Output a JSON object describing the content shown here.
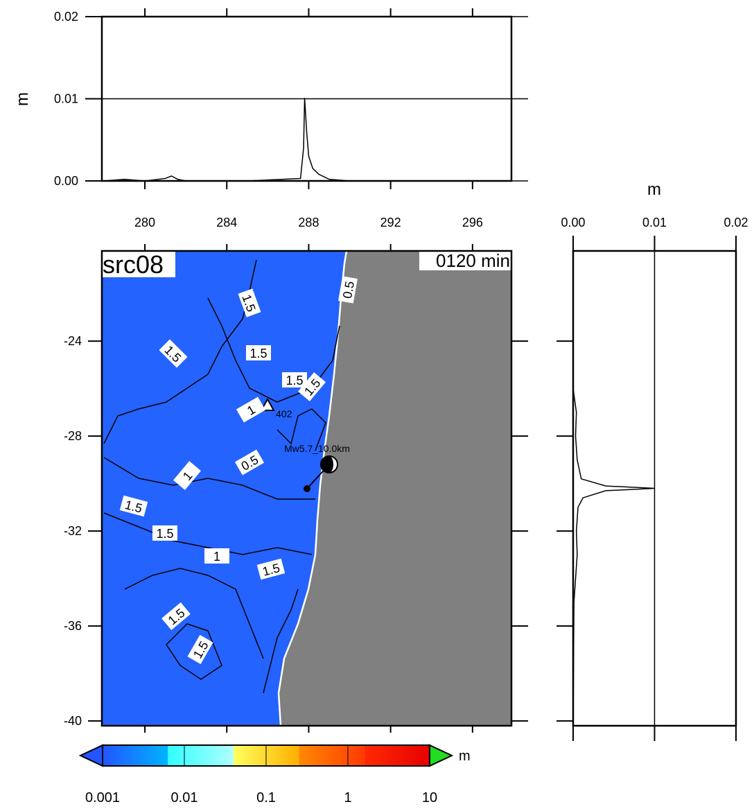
{
  "chart_data": [
    {
      "type": "line",
      "ylabel": "m",
      "xlim": [
        277.9,
        297.9
      ],
      "ylim": [
        0,
        0.02
      ],
      "xticks": [
        280,
        284,
        288,
        292,
        296
      ],
      "yticks": [
        {
          "value": 0,
          "label": "0.00"
        },
        {
          "value": 0.01,
          "label": "0.01"
        },
        {
          "value": 0.02,
          "label": "0.02"
        }
      ],
      "color": "#000000",
      "x": [
        278,
        279,
        279.5,
        280,
        281,
        281.3,
        281.6,
        282,
        285,
        287.6,
        287.75,
        287.8,
        287.9,
        288,
        288.2,
        288.5,
        289,
        290,
        297.9
      ],
      "values": [
        0,
        0.0002,
        0.0001,
        0,
        0.0003,
        0.0006,
        0.0002,
        0,
        0,
        0.0003,
        0.004,
        0.0101,
        0.006,
        0.003,
        0.0015,
        0.0008,
        0.0002,
        0,
        0
      ]
    },
    {
      "type": "map",
      "title": "src08",
      "time_label": "0120 min",
      "source_label": "Mw5.7_10.0km",
      "station_label": "402",
      "xlim": [
        277.9,
        297.9
      ],
      "ylim": [
        -40.2,
        -20.2
      ],
      "xticks": [
        280,
        284,
        288,
        292,
        296
      ],
      "yticks": [
        -24,
        -28,
        -32,
        -36,
        -40
      ],
      "sea_color": "#2563ff",
      "land_color": "#808080",
      "contour_labels": [
        "1.5",
        "0.5",
        "1.5",
        "1.5",
        "1.5",
        "1.5",
        "1",
        "0.5",
        "1",
        "1.5",
        "1.5",
        "1",
        "1.5",
        "1.5",
        "1.5"
      ]
    },
    {
      "type": "line",
      "orientation": "vertical",
      "xlabel": "m",
      "xlim": [
        0,
        0.02
      ],
      "ylim": [
        -40.2,
        -20.2
      ],
      "xticks": [
        {
          "value": 0,
          "label": "0.00"
        },
        {
          "value": 0.01,
          "label": "0.01"
        },
        {
          "value": 0.02,
          "label": "0.02"
        }
      ],
      "yticks": [
        -24,
        -28,
        -32,
        -36,
        -40
      ],
      "color": "#000000",
      "y": [
        -20.2,
        -26,
        -26.5,
        -27,
        -28,
        -29,
        -29.8,
        -30.1,
        -30.2,
        -30.3,
        -30.6,
        -31,
        -32,
        -33,
        -34,
        -35,
        -40.2
      ],
      "values": [
        0,
        0,
        0.0002,
        0.0004,
        0.0003,
        0.0005,
        0.001,
        0.004,
        0.01,
        0.004,
        0.0012,
        0.0006,
        0.0004,
        0.0005,
        0.0003,
        0.0001,
        0
      ]
    },
    {
      "type": "colorbar",
      "unit": "m",
      "log_scale": true,
      "lim": [
        0.001,
        10
      ],
      "ticks": [
        0.001,
        0.01,
        0.1,
        1,
        10
      ],
      "colors": [
        [
          "#2255ff",
          "#00b4ff"
        ],
        [
          "#30ffff",
          "#b0ffff"
        ],
        [
          "#ffff60",
          "#ffb000"
        ],
        [
          "#ff8a00",
          "#ff3a00"
        ],
        [
          "#ff2a00",
          "#e80000"
        ]
      ],
      "under_color": "#2255ff",
      "over_color": "#22dd22"
    }
  ]
}
